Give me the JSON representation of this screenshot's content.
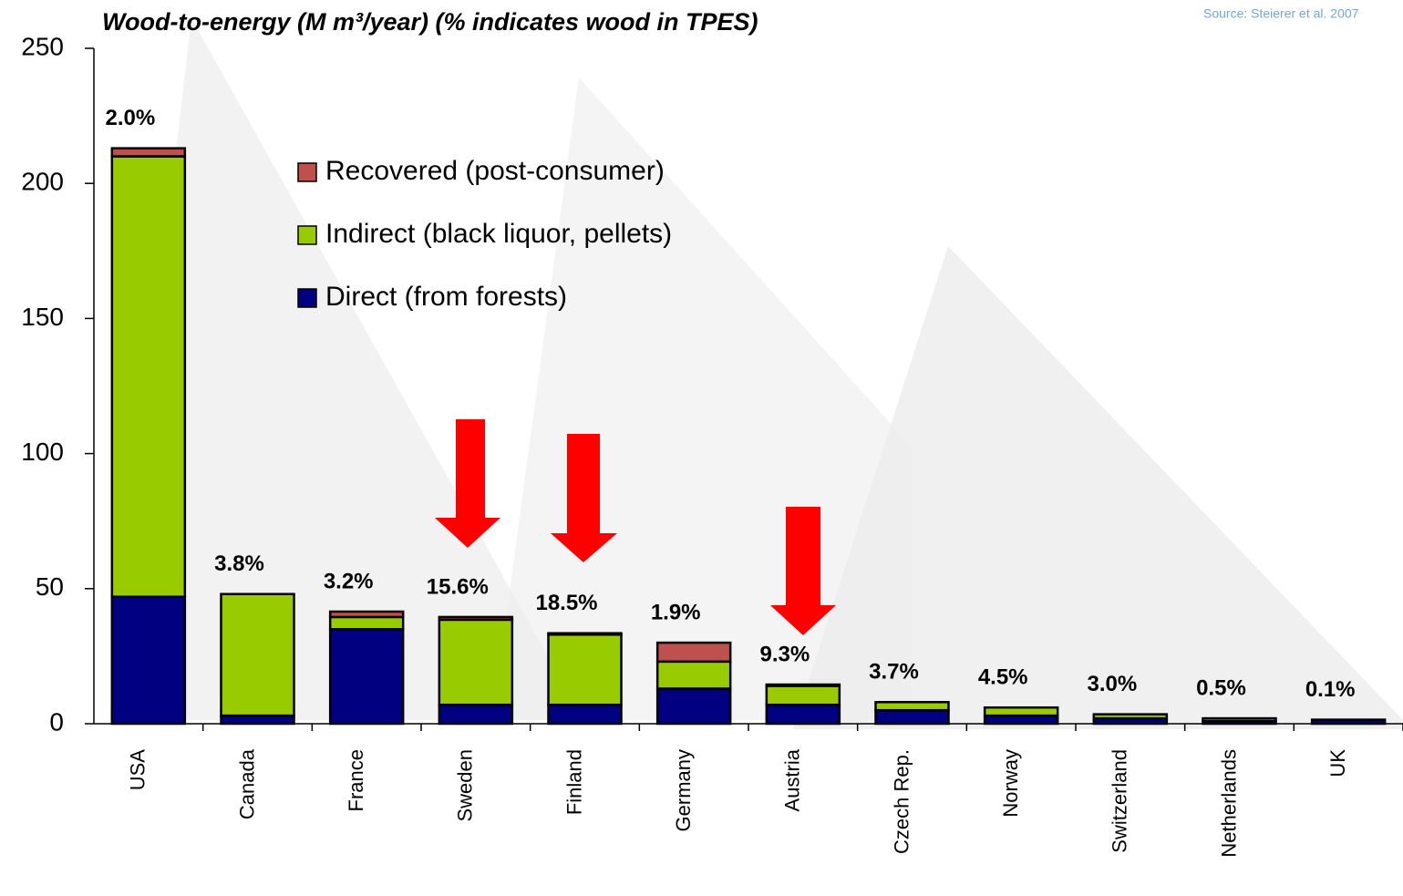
{
  "chart_data": {
    "type": "stacked_bar",
    "title": "Wood-to-energy (M m³/year)   (% indicates wood in TPES)",
    "source": "Source:  Steierer et al. 2007",
    "categories": [
      "USA",
      "Canada",
      "France",
      "Sweden",
      "Finland",
      "Germany",
      "Austria",
      "Czech Rep.",
      "Norway",
      "Switzerland",
      "Netherlands",
      "UK"
    ],
    "series": [
      {
        "name": "Direct (from forests)",
        "color": "#000080",
        "values": [
          47,
          3,
          35,
          7,
          7,
          13,
          7,
          5,
          3,
          2,
          1,
          1.5
        ]
      },
      {
        "name": "Indirect (black liquor, pellets)",
        "color": "#99cc00",
        "values": [
          163,
          45,
          4.5,
          31.5,
          26,
          10,
          7,
          3,
          3,
          1.5,
          1,
          0
        ]
      },
      {
        "name": "Recovered (post-consumer)",
        "color": "#c0504d",
        "values": [
          3,
          0,
          2,
          1,
          0.5,
          7,
          0.5,
          0,
          0,
          0,
          0,
          0
        ]
      }
    ],
    "percent_labels": [
      "2.0%",
      "3.8%",
      "3.2%",
      "15.6%",
      "18.5%",
      "1.9%",
      "9.3%",
      "3.7%",
      "4.5%",
      "3.0%",
      "0.5%",
      "0.1%"
    ],
    "ylim": [
      0,
      250
    ],
    "yticks": [
      0,
      50,
      100,
      150,
      200,
      250
    ]
  }
}
